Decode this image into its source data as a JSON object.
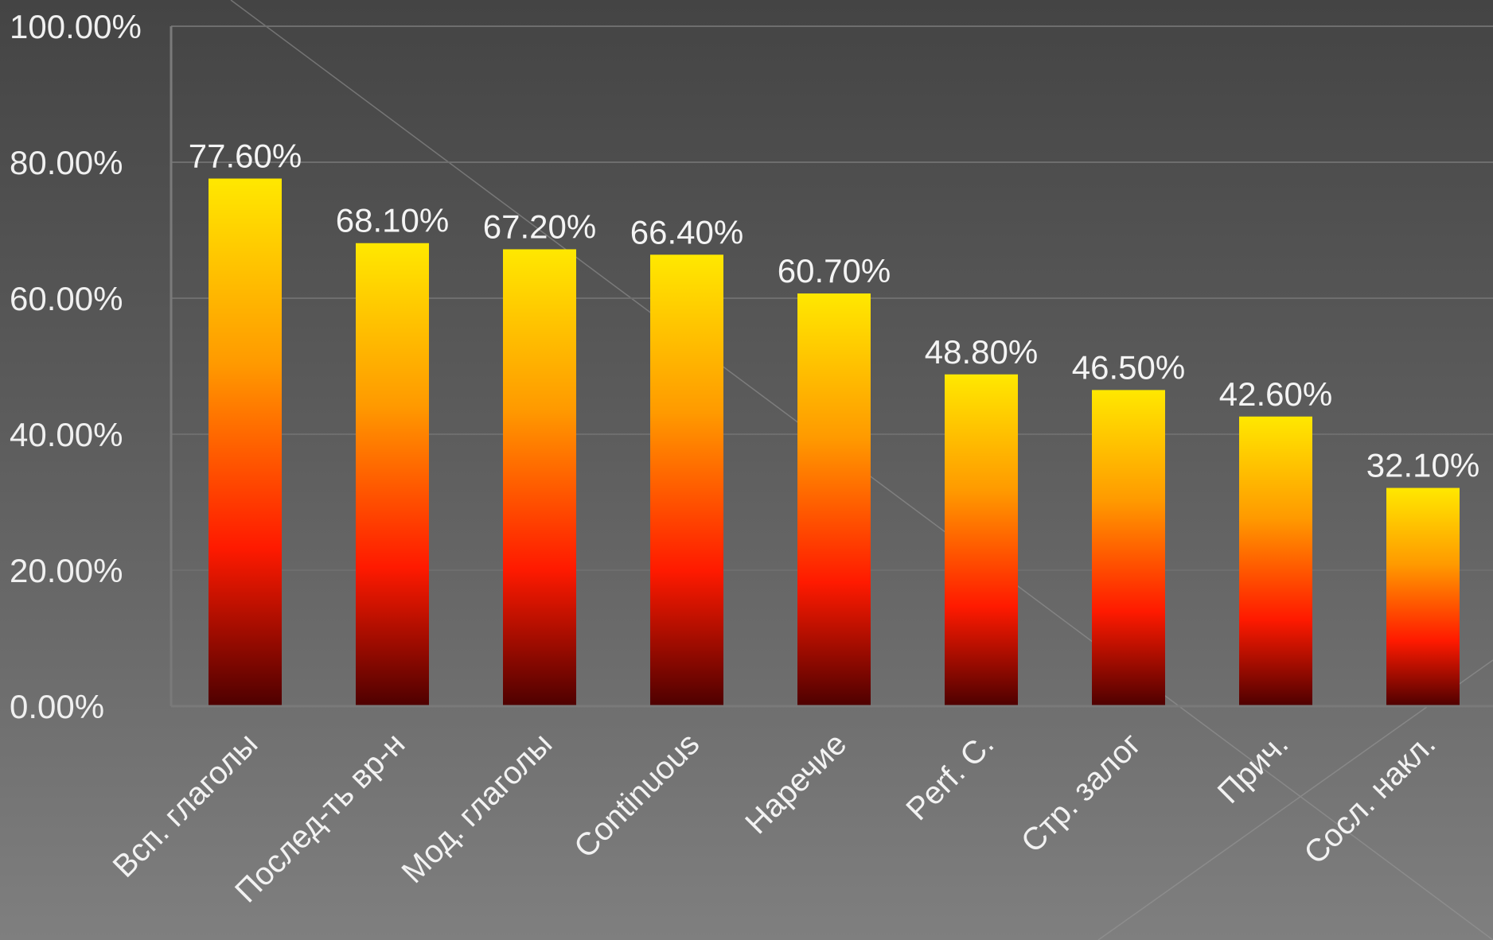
{
  "chart_data": {
    "type": "bar",
    "categories": [
      "Всп. глаголы",
      "Послед-ть вр-н",
      "Мод. глаголы",
      "Continuous",
      "Наречие",
      "Perf. C.",
      "Стр. залог",
      "Прич.",
      "Сосл. накл."
    ],
    "values": [
      77.6,
      68.1,
      67.2,
      66.4,
      60.7,
      48.8,
      46.5,
      42.6,
      32.1
    ],
    "value_labels": [
      "77.60%",
      "68.10%",
      "67.20%",
      "66.40%",
      "60.70%",
      "48.80%",
      "46.50%",
      "42.60%",
      "32.10%"
    ],
    "y_ticks": [
      0,
      20,
      40,
      60,
      80,
      100
    ],
    "y_tick_labels": [
      "0.00%",
      "20.00%",
      "40.00%",
      "60.00%",
      "80.00%",
      "100.00%"
    ],
    "ylim": [
      0,
      100
    ],
    "grid": true,
    "legend": "none",
    "bar_colors": {
      "top": "#ffe800",
      "upper": "#ff9a00",
      "middle": "#ff1a00",
      "bottom": "#4d0000"
    },
    "grid_color": "#6e6e6e",
    "axis_color": "#7a7a7a"
  }
}
